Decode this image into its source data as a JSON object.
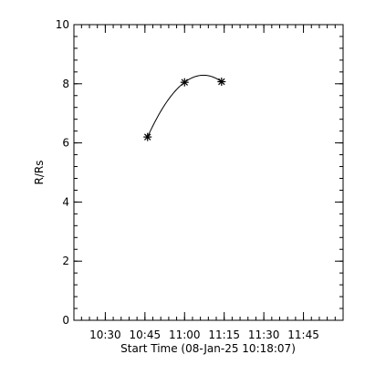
{
  "chart_data": {
    "type": "scatter",
    "title": "",
    "xlabel": "Start Time (08-Jan-25 10:18:07)",
    "ylabel": "R/Rs",
    "x_tick_labels": [
      "10:30",
      "10:45",
      "11:00",
      "11:15",
      "11:30",
      "11:45"
    ],
    "x_tick_minutes": [
      30,
      45,
      60,
      75,
      90,
      105
    ],
    "x_range_minutes": [
      18.12,
      120
    ],
    "x_minor_step_minutes": 3,
    "y_tick_labels": [
      "0",
      "2",
      "4",
      "6",
      "8",
      "10"
    ],
    "y_ticks": [
      0,
      2,
      4,
      6,
      8,
      10
    ],
    "ylim": [
      0,
      10
    ],
    "y_minor_step": 0.4,
    "grid": false,
    "legend": "none",
    "marker": "asterisk",
    "color": "#000000",
    "points": [
      {
        "time": "10:46",
        "minute": 46,
        "y": 6.2
      },
      {
        "time": "11:00",
        "minute": 60,
        "y": 8.05
      },
      {
        "time": "11:14",
        "minute": 74,
        "y": 8.07
      }
    ],
    "fit_curve": {
      "type": "quadratic",
      "points_source": "points"
    }
  }
}
